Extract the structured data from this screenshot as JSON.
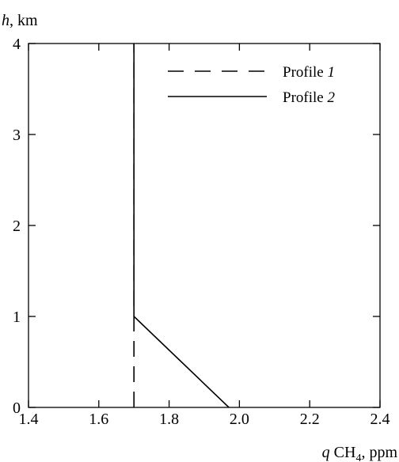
{
  "chart_data": {
    "type": "line",
    "xlabel": "q CH4, ppm",
    "ylabel": "h, km",
    "xlim": [
      1.4,
      2.4
    ],
    "ylim": [
      0,
      4
    ],
    "x_ticks": [
      "1.4",
      "1.6",
      "1.8",
      "2.0",
      "2.2",
      "2.4"
    ],
    "y_ticks": [
      "0",
      "1",
      "2",
      "3",
      "4"
    ],
    "grid": false,
    "legend_position": "top-right",
    "series": [
      {
        "name": "Profile 1",
        "name_prefix": "Profile ",
        "name_num": "1",
        "style": "dashed",
        "color": "#000000",
        "points": [
          [
            1.7,
            0
          ],
          [
            1.7,
            4
          ]
        ]
      },
      {
        "name": "Profile 2",
        "name_prefix": "Profile ",
        "name_num": "2",
        "style": "solid",
        "color": "#000000",
        "points": [
          [
            1.97,
            0
          ],
          [
            1.7,
            1
          ],
          [
            1.7,
            4
          ]
        ]
      }
    ]
  },
  "labels": {
    "y_var": "h",
    "y_unit": ", km",
    "x_var": "q",
    "x_species": "CH",
    "x_subscript": "4",
    "x_unit": ", ppm"
  }
}
